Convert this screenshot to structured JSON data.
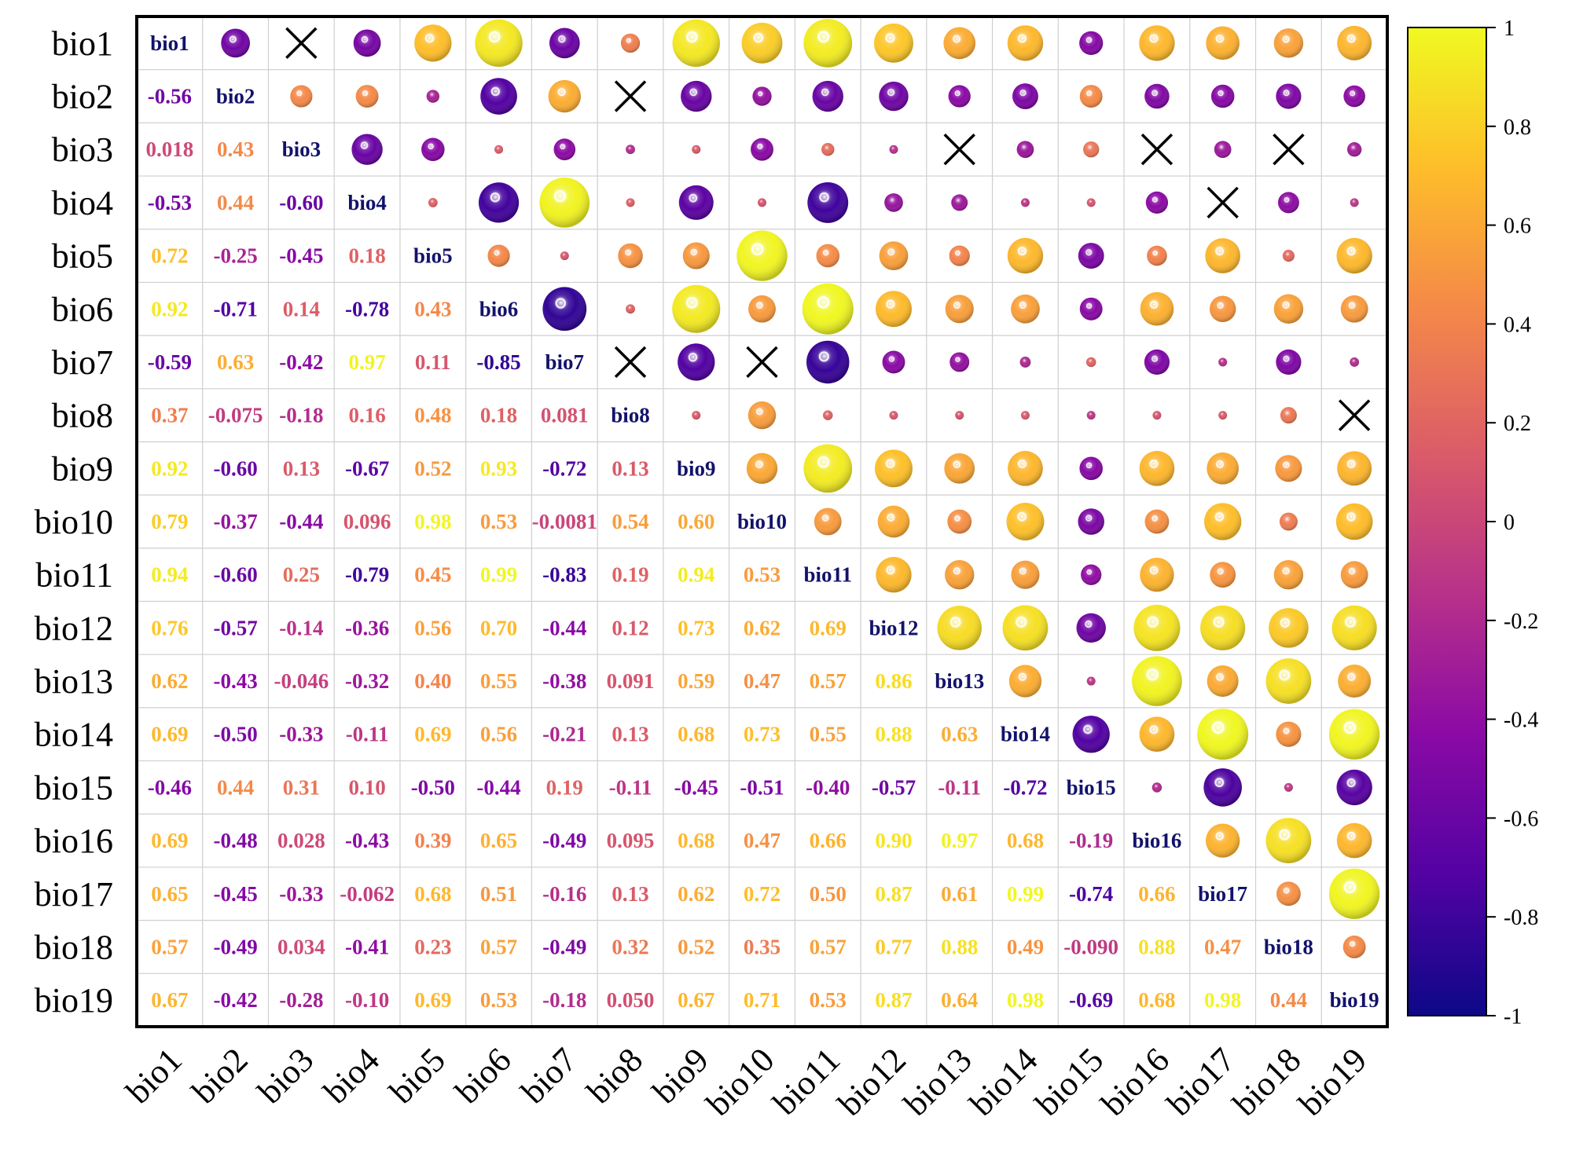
{
  "chart_data": {
    "type": "heatmap",
    "subtype": "correlation-matrix",
    "variables": [
      "bio1",
      "bio2",
      "bio3",
      "bio4",
      "bio5",
      "bio6",
      "bio7",
      "bio8",
      "bio9",
      "bio10",
      "bio11",
      "bio12",
      "bio13",
      "bio14",
      "bio15",
      "bio16",
      "bio17",
      "bio18",
      "bio19"
    ],
    "lower_triangle_labels": [
      [],
      [
        "-0.56"
      ],
      [
        "0.018",
        "0.43"
      ],
      [
        "-0.53",
        "0.44",
        "-0.60"
      ],
      [
        "0.72",
        "-0.25",
        "-0.45",
        "0.18"
      ],
      [
        "0.92",
        "-0.71",
        "0.14",
        "-0.78",
        "0.43"
      ],
      [
        "-0.59",
        "0.63",
        "-0.42",
        "0.97",
        "0.11",
        "-0.85"
      ],
      [
        "0.37",
        "-0.075",
        "-0.18",
        "0.16",
        "0.48",
        "0.18",
        "0.081"
      ],
      [
        "0.92",
        "-0.60",
        "0.13",
        "-0.67",
        "0.52",
        "0.93",
        "-0.72",
        "0.13"
      ],
      [
        "0.79",
        "-0.37",
        "-0.44",
        "0.096",
        "0.98",
        "0.53",
        "-0.0081",
        "0.54",
        "0.60"
      ],
      [
        "0.94",
        "-0.60",
        "0.25",
        "-0.79",
        "0.45",
        "0.99",
        "-0.83",
        "0.19",
        "0.94",
        "0.53"
      ],
      [
        "0.76",
        "-0.57",
        "-0.14",
        "-0.36",
        "0.56",
        "0.70",
        "-0.44",
        "0.12",
        "0.73",
        "0.62",
        "0.69"
      ],
      [
        "0.62",
        "-0.43",
        "-0.046",
        "-0.32",
        "0.40",
        "0.55",
        "-0.38",
        "0.091",
        "0.59",
        "0.47",
        "0.57",
        "0.86"
      ],
      [
        "0.69",
        "-0.50",
        "-0.33",
        "-0.11",
        "0.69",
        "0.56",
        "-0.21",
        "0.13",
        "0.68",
        "0.73",
        "0.55",
        "0.88",
        "0.63"
      ],
      [
        "-0.46",
        "0.44",
        "0.31",
        "0.10",
        "-0.50",
        "-0.44",
        "0.19",
        "-0.11",
        "-0.45",
        "-0.51",
        "-0.40",
        "-0.57",
        "-0.11",
        "-0.72"
      ],
      [
        "0.69",
        "-0.48",
        "0.028",
        "-0.43",
        "0.39",
        "0.65",
        "-0.49",
        "0.095",
        "0.68",
        "0.47",
        "0.66",
        "0.90",
        "0.97",
        "0.68",
        "-0.19"
      ],
      [
        "0.65",
        "-0.45",
        "-0.33",
        "-0.062",
        "0.68",
        "0.51",
        "-0.16",
        "0.13",
        "0.62",
        "0.72",
        "0.50",
        "0.87",
        "0.61",
        "0.99",
        "-0.74",
        "0.66"
      ],
      [
        "0.57",
        "-0.49",
        "0.034",
        "-0.41",
        "0.23",
        "0.57",
        "-0.49",
        "0.32",
        "0.52",
        "0.35",
        "0.57",
        "0.77",
        "0.88",
        "0.49",
        "-0.090",
        "0.88",
        "0.47"
      ],
      [
        "0.67",
        "-0.42",
        "-0.28",
        "-0.10",
        "0.69",
        "0.53",
        "-0.18",
        "0.050",
        "0.67",
        "0.71",
        "0.53",
        "0.87",
        "0.64",
        "0.98",
        "-0.69",
        "0.68",
        "0.98",
        "0.44"
      ]
    ],
    "upper_triangle_note": "circle size and color encode the correlation r of cell (i,j)",
    "insignificant_marker": "cross",
    "insignificant_pairs": [
      [
        1,
        3
      ],
      [
        2,
        8
      ],
      [
        3,
        13
      ],
      [
        3,
        16
      ],
      [
        3,
        18
      ],
      [
        4,
        17
      ],
      [
        7,
        8
      ],
      [
        7,
        10
      ],
      [
        8,
        19
      ]
    ],
    "colorbar": {
      "range": [
        -1,
        1
      ],
      "ticks": [
        "1",
        "0.8",
        "0.6",
        "0.4",
        "0.2",
        "0",
        "-0.2",
        "-0.4",
        "-0.6",
        "-0.8",
        "-1"
      ],
      "colormap": "plasma",
      "stops": [
        "#0d0887",
        "#5302a3",
        "#8b0aa5",
        "#b83289",
        "#db5c68",
        "#f48849",
        "#febd2a",
        "#f0f921"
      ]
    }
  }
}
